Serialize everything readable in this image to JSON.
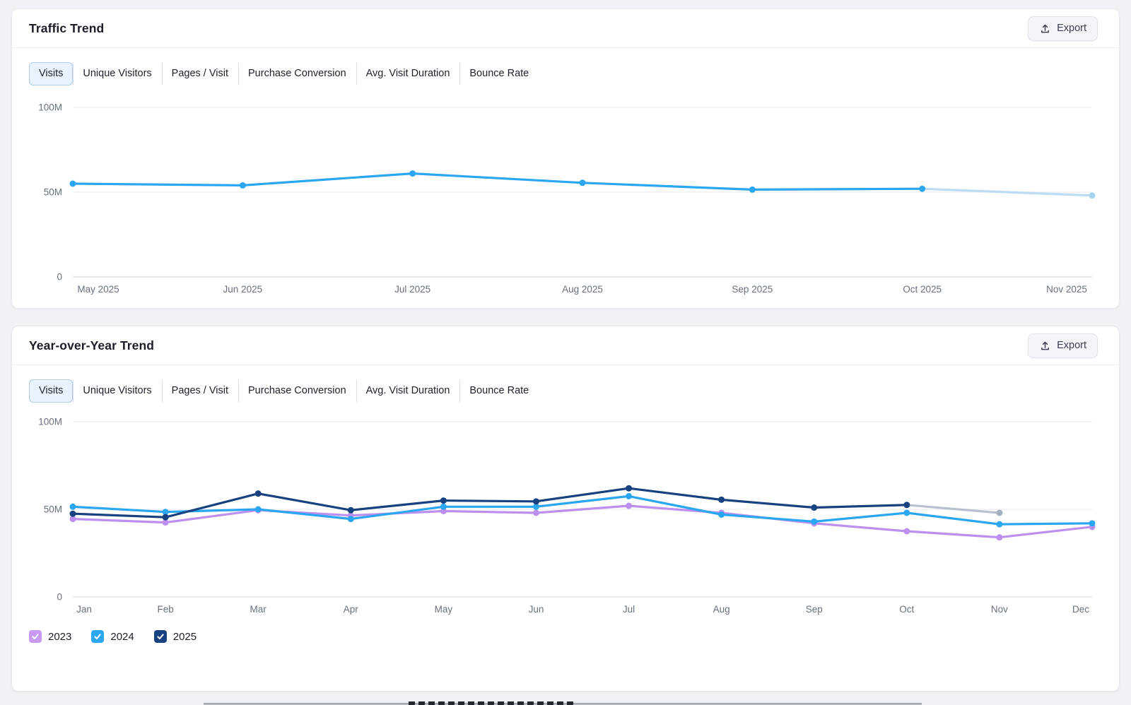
{
  "page": {
    "background_color": "#f1f2f6",
    "accent_blue": "#2ba6f1",
    "accent_navy": "#17417f",
    "accent_purple": "#bd90f0"
  },
  "panels": [
    {
      "title": "Traffic Trend",
      "export_label": "Export",
      "tabs": [
        "Visits",
        "Unique Visitors",
        "Pages / Visit",
        "Purchase Conversion",
        "Avg. Visit Duration",
        "Bounce Rate"
      ],
      "active_tab": "Visits"
    },
    {
      "title": "Year-over-Year Trend",
      "export_label": "Export",
      "tabs": [
        "Visits",
        "Unique Visitors",
        "Pages / Visit",
        "Purchase Conversion",
        "Avg. Visit Duration",
        "Bounce Rate"
      ],
      "active_tab": "Visits",
      "legend": [
        {
          "label": "2023",
          "color": "#c89af4",
          "checked": true
        },
        {
          "label": "2024",
          "color": "#2ba6f1",
          "checked": true
        },
        {
          "label": "2025",
          "color": "#17417f",
          "checked": true
        }
      ]
    }
  ],
  "chart_data": [
    {
      "type": "line",
      "title": "Traffic Trend",
      "metric": "Visits",
      "x": [
        "May 2025",
        "Jun 2025",
        "Jul 2025",
        "Aug 2025",
        "Sep 2025",
        "Oct 2025",
        "Nov 2025"
      ],
      "series": [
        {
          "name": "Visits",
          "color": "#2ba6f1",
          "values": [
            55,
            54,
            61,
            55.5,
            51.5,
            52,
            48
          ],
          "faded_from_index": 5,
          "faded_line_color": "#bcdcf6",
          "faded_point_color": "#a6d2f3"
        }
      ],
      "yticks": [
        {
          "label": "100M",
          "value": 100
        },
        {
          "label": "50M",
          "value": 50
        },
        {
          "label": "0",
          "value": 0
        }
      ],
      "ylim": [
        0,
        100
      ],
      "unit": "M",
      "grid": true,
      "legend_position": "none"
    },
    {
      "type": "line",
      "title": "Year-over-Year Trend",
      "metric": "Visits",
      "x": [
        "Jan",
        "Feb",
        "Mar",
        "Apr",
        "May",
        "Jun",
        "Jul",
        "Aug",
        "Sep",
        "Oct",
        "Nov",
        "Dec"
      ],
      "series": [
        {
          "name": "2023",
          "color": "#bd90f0",
          "values": [
            44.5,
            42.5,
            49.5,
            46.5,
            49,
            48,
            52,
            48,
            42,
            37.5,
            34,
            40
          ]
        },
        {
          "name": "2024",
          "color": "#2ba6f1",
          "values": [
            51.5,
            48.5,
            50,
            44.5,
            51.5,
            51.5,
            57.5,
            47,
            43,
            48,
            41.5,
            42
          ]
        },
        {
          "name": "2025",
          "color": "#17417f",
          "values": [
            47.5,
            45.5,
            59,
            49.5,
            55,
            54.5,
            62,
            55.5,
            51,
            52.5,
            48,
            null
          ],
          "faded_from_index": 9,
          "faded_line_color": "#b7c1cf",
          "faded_point_color": "#a6b2c2"
        }
      ],
      "yticks": [
        {
          "label": "100M",
          "value": 100
        },
        {
          "label": "50M",
          "value": 50
        },
        {
          "label": "0",
          "value": 0
        }
      ],
      "ylim": [
        0,
        100
      ],
      "unit": "M",
      "grid": true,
      "legend_position": "bottom-left"
    }
  ]
}
